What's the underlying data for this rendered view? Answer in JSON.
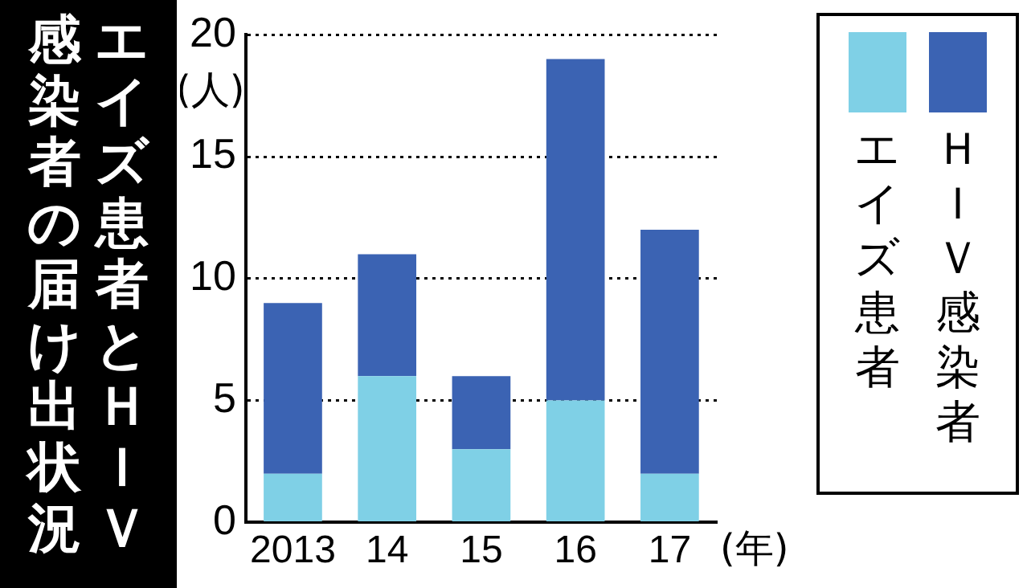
{
  "chart_data": {
    "type": "bar",
    "title": "エイズ患者とＨＩＶ",
    "subtitle": "感染者の届け出状況",
    "ylabel": "(人)",
    "annotations": [
      "(年)"
    ],
    "categories": [
      "2013",
      "14",
      "15",
      "16",
      "17"
    ],
    "stacked": true,
    "series": [
      {
        "name": "エイズ患者",
        "color": "#7fd0e6",
        "values": [
          2,
          6,
          3,
          5,
          2
        ]
      },
      {
        "name": "ＨＩＶ感染者",
        "color": "#3b63b3",
        "values": [
          7,
          5,
          3,
          14,
          10
        ]
      }
    ],
    "ylim": [
      0,
      20
    ],
    "yticks": [
      0,
      5,
      10,
      15,
      20
    ],
    "grid": "y",
    "legend": "right"
  }
}
